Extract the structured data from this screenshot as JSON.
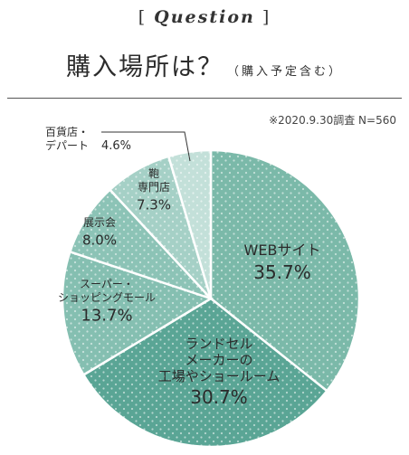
{
  "header": {
    "tag_open": "[",
    "tag_word": "Question",
    "tag_close": "]",
    "title": "購入場所は？",
    "subtitle": "（購入予定含む）",
    "note": "※2020.9.30調査 N=560"
  },
  "colors": {
    "slice_fill": [
      "#7bb9a9",
      "#5aa595",
      "#85bfb1",
      "#8cc3b6",
      "#a5d0c6",
      "#c3e0d9"
    ],
    "dot": "#ffffff",
    "label_dark": "#2b2b2b",
    "label_light": "#ffffff"
  },
  "chart_data": {
    "type": "pie",
    "title": "購入場所は？（購入予定含む）",
    "unit": "%",
    "slices": [
      {
        "label": "WEBサイト",
        "value": 35.7
      },
      {
        "label": "ランドセルメーカーの工場やショールーム",
        "value": 30.7
      },
      {
        "label": "スーパー・ショッピングモール",
        "value": 13.7
      },
      {
        "label": "展示会",
        "value": 8.0
      },
      {
        "label": "鞄専門店",
        "value": 7.3
      },
      {
        "label": "百貨店・デパート",
        "value": 4.6
      }
    ]
  },
  "slice_labels": [
    {
      "lines": [
        "WEBサイト"
      ],
      "pct": "35.7%"
    },
    {
      "lines": [
        "ランドセル",
        "メーカーの",
        "工場やショールーム"
      ],
      "pct": "30.7%"
    },
    {
      "lines": [
        "スーパー・",
        "ショッピングモール"
      ],
      "pct": "13.7%"
    },
    {
      "lines": [
        "展示会"
      ],
      "pct": "8.0%"
    },
    {
      "lines": [
        "鞄",
        "専門店"
      ],
      "pct": "7.3%"
    },
    {
      "lines": [
        "百貨店・",
        "デパート"
      ],
      "pct": "4.6%"
    }
  ]
}
